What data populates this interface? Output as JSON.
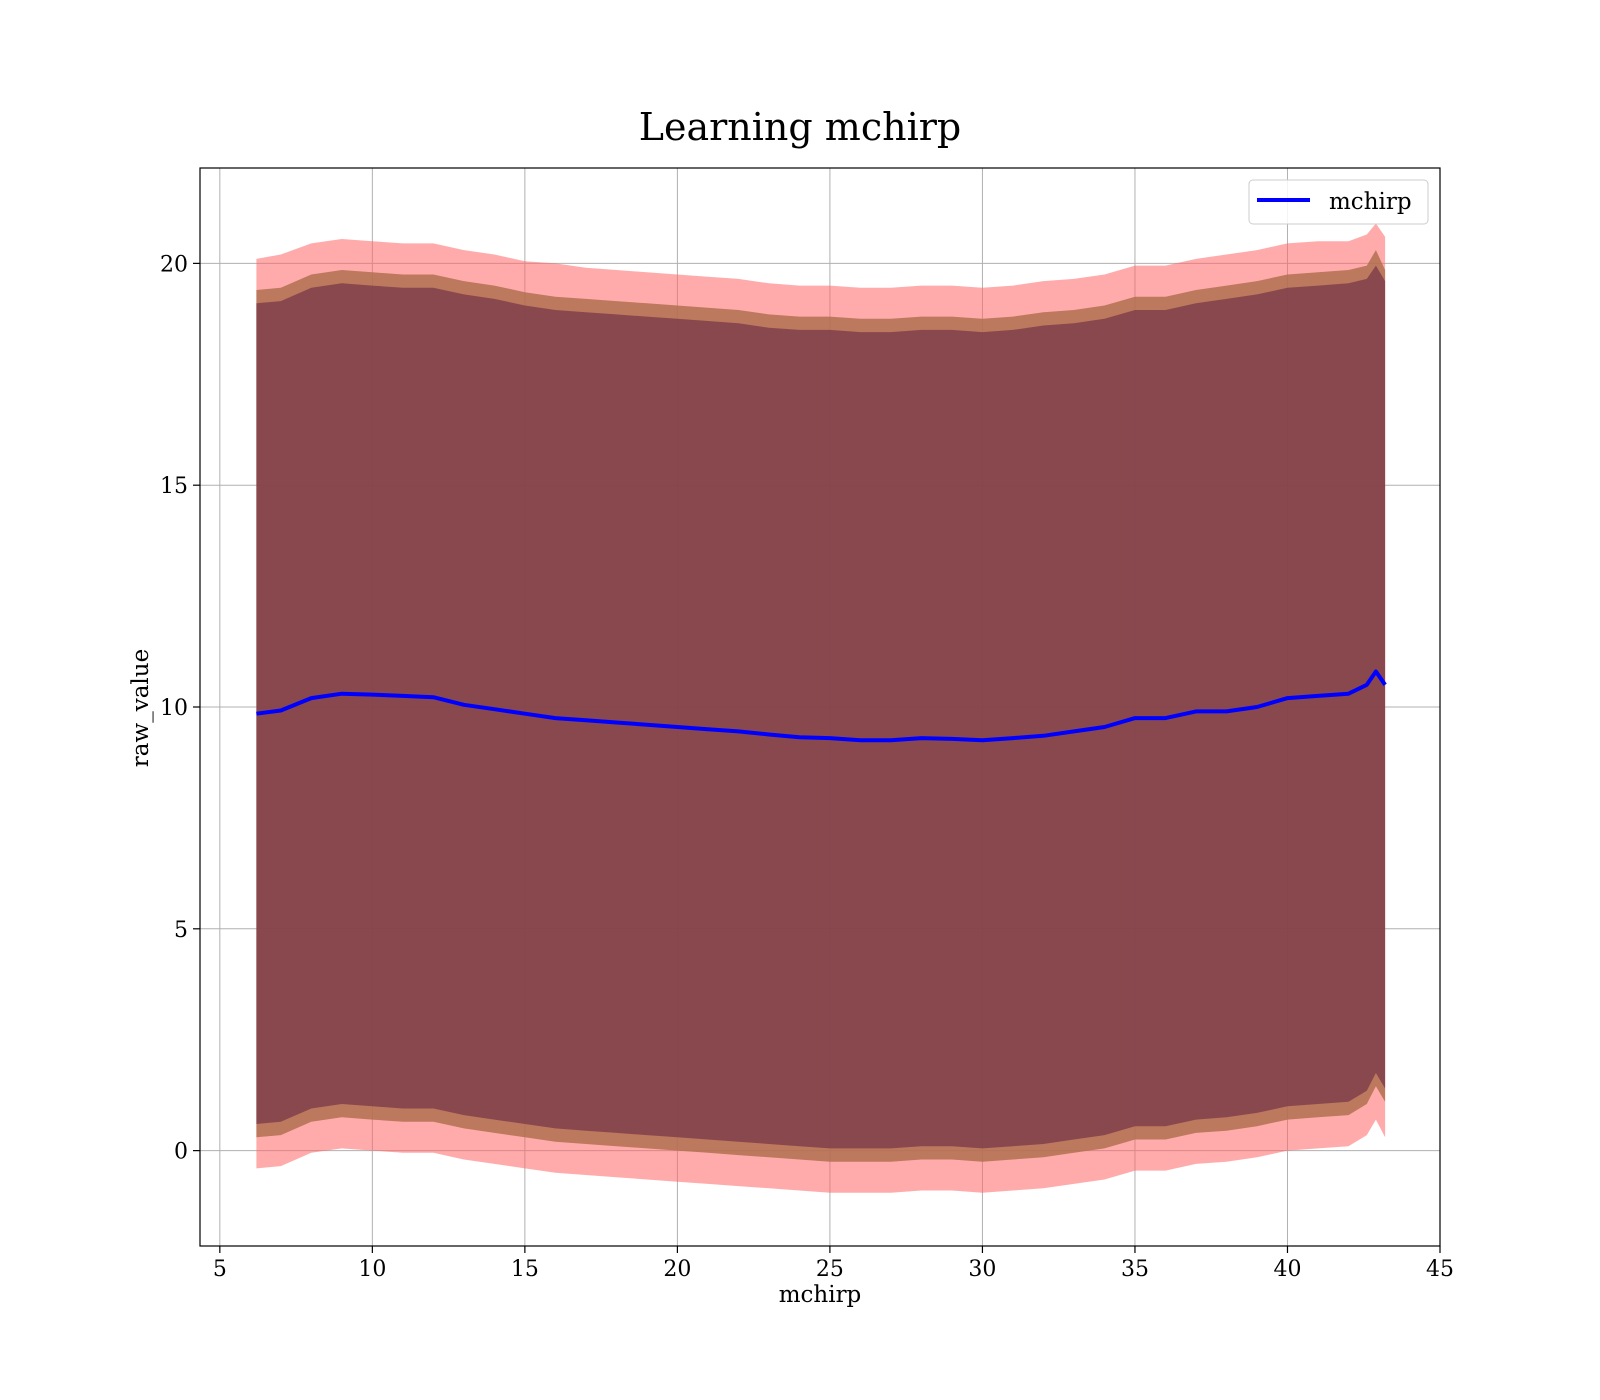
{
  "chart_data": {
    "type": "line",
    "title": "Learning mchirp",
    "xlabel": "mchirp",
    "ylabel": "raw_value",
    "xlim": [
      4.35,
      45
    ],
    "ylim": [
      -2.15,
      22.15
    ],
    "xticks": [
      5,
      10,
      15,
      20,
      25,
      30,
      35,
      40,
      45
    ],
    "yticks": [
      0,
      5,
      10,
      15,
      20
    ],
    "grid": true,
    "legend": {
      "position": "top-right",
      "entries": [
        "mchirp"
      ]
    },
    "colors": {
      "line": "#0000ff",
      "band_outer": "#ff6666",
      "band_middle": "#b07050",
      "band_inner": "#6a2a45"
    },
    "x": [
      6.2,
      7.0,
      8.0,
      9.0,
      10.0,
      11.0,
      12.0,
      13.0,
      14.0,
      15.0,
      16.0,
      17.0,
      18.0,
      19.0,
      20.0,
      21.0,
      22.0,
      23.0,
      24.0,
      25.0,
      26.0,
      27.0,
      28.0,
      29.0,
      30.0,
      31.0,
      32.0,
      33.0,
      34.0,
      35.0,
      36.0,
      37.0,
      38.0,
      39.0,
      40.0,
      41.0,
      42.0,
      42.6,
      42.9,
      43.2
    ],
    "series": [
      {
        "name": "mchirp",
        "values": [
          9.85,
          9.92,
          10.2,
          10.3,
          10.28,
          10.25,
          10.22,
          10.05,
          9.95,
          9.85,
          9.75,
          9.7,
          9.65,
          9.6,
          9.55,
          9.5,
          9.45,
          9.38,
          9.32,
          9.3,
          9.25,
          9.25,
          9.3,
          9.28,
          9.25,
          9.3,
          9.35,
          9.45,
          9.55,
          9.75,
          9.75,
          9.9,
          9.9,
          10.0,
          10.2,
          10.25,
          10.3,
          10.5,
          10.8,
          10.5
        ]
      }
    ],
    "bands": [
      {
        "level": "outer",
        "upper": [
          20.1,
          20.2,
          20.45,
          20.55,
          20.5,
          20.45,
          20.45,
          20.3,
          20.2,
          20.05,
          20.0,
          19.9,
          19.85,
          19.8,
          19.75,
          19.7,
          19.65,
          19.55,
          19.5,
          19.5,
          19.45,
          19.45,
          19.5,
          19.5,
          19.45,
          19.5,
          19.6,
          19.65,
          19.75,
          19.95,
          19.95,
          20.1,
          20.2,
          20.3,
          20.45,
          20.5,
          20.5,
          20.65,
          20.9,
          20.6
        ],
        "lower": [
          -0.4,
          -0.35,
          -0.05,
          0.05,
          0.0,
          -0.05,
          -0.05,
          -0.2,
          -0.3,
          -0.4,
          -0.5,
          -0.55,
          -0.6,
          -0.65,
          -0.7,
          -0.75,
          -0.8,
          -0.85,
          -0.9,
          -0.95,
          -0.95,
          -0.95,
          -0.9,
          -0.9,
          -0.95,
          -0.9,
          -0.85,
          -0.75,
          -0.65,
          -0.45,
          -0.45,
          -0.3,
          -0.25,
          -0.15,
          0.0,
          0.05,
          0.1,
          0.35,
          0.7,
          0.3
        ]
      },
      {
        "level": "middle",
        "upper": [
          19.4,
          19.45,
          19.75,
          19.85,
          19.8,
          19.75,
          19.75,
          19.6,
          19.5,
          19.35,
          19.25,
          19.2,
          19.15,
          19.1,
          19.05,
          19.0,
          18.95,
          18.85,
          18.8,
          18.8,
          18.75,
          18.75,
          18.8,
          18.8,
          18.75,
          18.8,
          18.9,
          18.95,
          19.05,
          19.25,
          19.25,
          19.4,
          19.5,
          19.6,
          19.75,
          19.8,
          19.85,
          19.95,
          20.3,
          19.85
        ],
        "lower": [
          0.3,
          0.35,
          0.65,
          0.75,
          0.7,
          0.65,
          0.65,
          0.5,
          0.4,
          0.3,
          0.2,
          0.15,
          0.1,
          0.05,
          0.0,
          -0.05,
          -0.1,
          -0.15,
          -0.2,
          -0.25,
          -0.25,
          -0.25,
          -0.2,
          -0.2,
          -0.25,
          -0.2,
          -0.15,
          -0.05,
          0.05,
          0.25,
          0.25,
          0.4,
          0.45,
          0.55,
          0.7,
          0.75,
          0.8,
          1.05,
          1.45,
          1.1
        ]
      },
      {
        "level": "inner",
        "upper": [
          19.1,
          19.15,
          19.45,
          19.55,
          19.5,
          19.45,
          19.45,
          19.3,
          19.2,
          19.05,
          18.95,
          18.9,
          18.85,
          18.8,
          18.75,
          18.7,
          18.65,
          18.55,
          18.5,
          18.5,
          18.45,
          18.45,
          18.5,
          18.5,
          18.45,
          18.5,
          18.6,
          18.65,
          18.75,
          18.95,
          18.95,
          19.1,
          19.2,
          19.3,
          19.45,
          19.5,
          19.55,
          19.65,
          19.95,
          19.6
        ],
        "lower": [
          0.6,
          0.65,
          0.95,
          1.05,
          1.0,
          0.95,
          0.95,
          0.8,
          0.7,
          0.6,
          0.5,
          0.45,
          0.4,
          0.35,
          0.3,
          0.25,
          0.2,
          0.15,
          0.1,
          0.05,
          0.05,
          0.05,
          0.1,
          0.1,
          0.05,
          0.1,
          0.15,
          0.25,
          0.35,
          0.55,
          0.55,
          0.7,
          0.75,
          0.85,
          1.0,
          1.05,
          1.1,
          1.35,
          1.75,
          1.4
        ]
      }
    ]
  }
}
